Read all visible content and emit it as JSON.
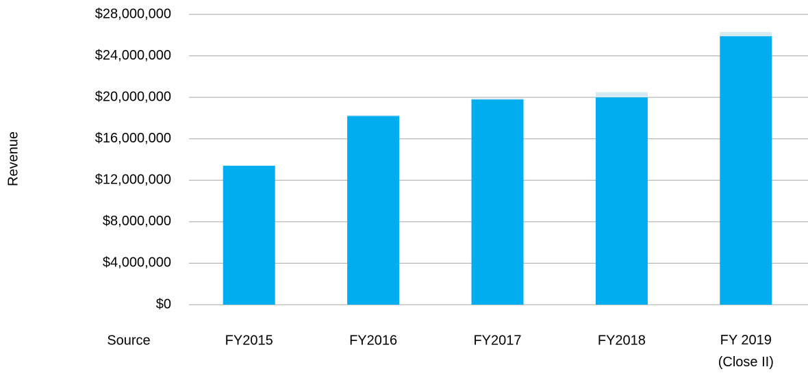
{
  "chart_data": {
    "type": "stacked_bar",
    "ylabel": "Revenue",
    "xlabel": "Source",
    "categories": [
      "FY2015",
      "FY2016",
      "FY2017",
      "FY2018",
      "FY 2019\n(Close II)"
    ],
    "series": [
      {
        "color": "#00adee",
        "values": [
          13400000,
          18200000,
          19800000,
          20000000,
          25900000
        ]
      },
      {
        "color": "#d6eaf4",
        "values": [
          0,
          100000,
          100000,
          500000,
          400000
        ]
      }
    ],
    "ylim": [
      0,
      28000000
    ],
    "yticks": [
      {
        "value": 0,
        "label": "$0"
      },
      {
        "value": 4000000,
        "label": "$4,000,000"
      },
      {
        "value": 8000000,
        "label": "$8,000,000"
      },
      {
        "value": 12000000,
        "label": "$12,000,000"
      },
      {
        "value": 16000000,
        "label": "$16,000,000"
      },
      {
        "value": 20000000,
        "label": "$20,000,000"
      },
      {
        "value": 24000000,
        "label": "$24,000,000"
      },
      {
        "value": 28000000,
        "label": "$28,000,000"
      }
    ],
    "grid": true
  }
}
